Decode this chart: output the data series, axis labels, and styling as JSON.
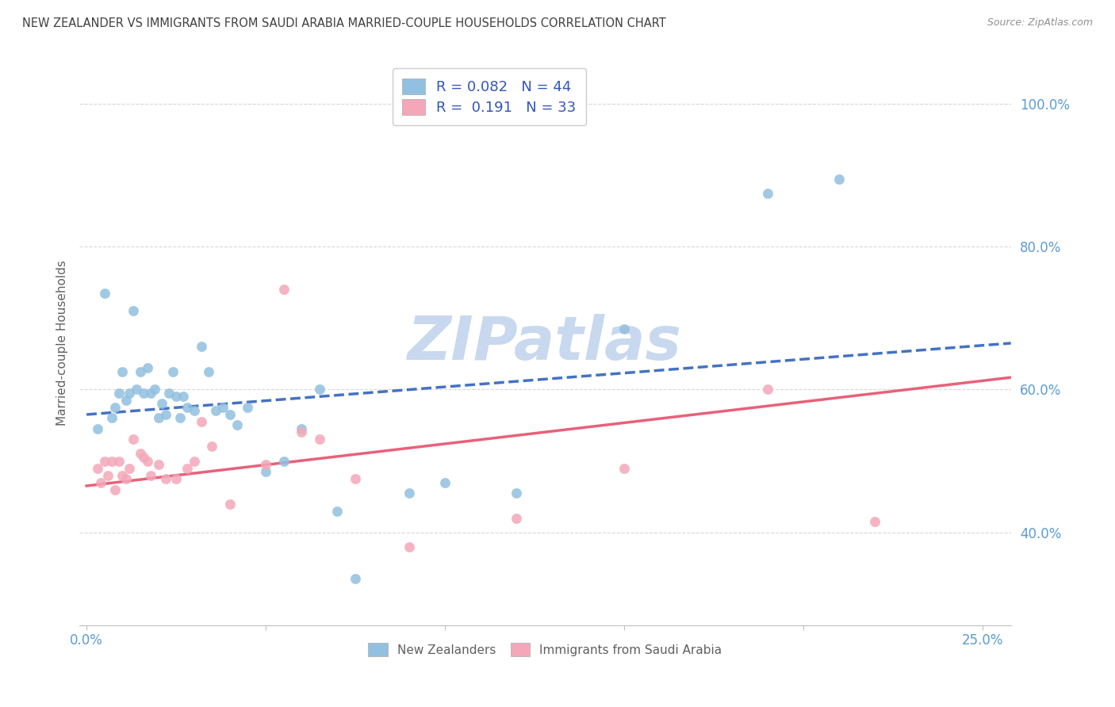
{
  "title": "NEW ZEALANDER VS IMMIGRANTS FROM SAUDI ARABIA MARRIED-COUPLE HOUSEHOLDS CORRELATION CHART",
  "source": "Source: ZipAtlas.com",
  "ylabel": "Married-couple Households",
  "ylim": [
    0.27,
    1.06
  ],
  "xlim": [
    -0.002,
    0.258
  ],
  "yticks": [
    0.4,
    0.6,
    0.8,
    1.0
  ],
  "ytick_labels": [
    "40.0%",
    "60.0%",
    "80.0%",
    "100.0%"
  ],
  "xticks": [
    0.0,
    0.05,
    0.1,
    0.15,
    0.2,
    0.25
  ],
  "legend_r1": "R = 0.082",
  "legend_n1": "N = 44",
  "legend_r2": "R =  0.191",
  "legend_n2": "N = 33",
  "legend_label1": "New Zealanders",
  "legend_label2": "Immigrants from Saudi Arabia",
  "color_blue": "#92c0e0",
  "color_pink": "#f4a7b9",
  "color_blue_line": "#4472c4",
  "color_pink_line": "#e8617a",
  "color_title": "#404040",
  "color_source": "#909090",
  "color_watermark": "#c8d8ee",
  "watermark": "ZIPatlas",
  "blue_scatter_x": [
    0.003,
    0.005,
    0.007,
    0.008,
    0.009,
    0.01,
    0.011,
    0.012,
    0.013,
    0.014,
    0.015,
    0.016,
    0.017,
    0.018,
    0.019,
    0.02,
    0.021,
    0.022,
    0.023,
    0.024,
    0.025,
    0.026,
    0.027,
    0.028,
    0.03,
    0.032,
    0.034,
    0.036,
    0.038,
    0.04,
    0.042,
    0.045,
    0.05,
    0.055,
    0.06,
    0.065,
    0.07,
    0.075,
    0.09,
    0.1,
    0.12,
    0.15,
    0.19,
    0.21
  ],
  "blue_scatter_y": [
    0.545,
    0.735,
    0.56,
    0.575,
    0.595,
    0.625,
    0.585,
    0.595,
    0.71,
    0.6,
    0.625,
    0.595,
    0.63,
    0.595,
    0.6,
    0.56,
    0.58,
    0.565,
    0.595,
    0.625,
    0.59,
    0.56,
    0.59,
    0.575,
    0.57,
    0.66,
    0.625,
    0.57,
    0.575,
    0.565,
    0.55,
    0.575,
    0.485,
    0.5,
    0.545,
    0.6,
    0.43,
    0.335,
    0.455,
    0.47,
    0.455,
    0.685,
    0.875,
    0.895
  ],
  "pink_scatter_x": [
    0.003,
    0.004,
    0.005,
    0.006,
    0.007,
    0.008,
    0.009,
    0.01,
    0.011,
    0.012,
    0.013,
    0.015,
    0.016,
    0.017,
    0.018,
    0.02,
    0.022,
    0.025,
    0.028,
    0.03,
    0.032,
    0.035,
    0.04,
    0.05,
    0.055,
    0.06,
    0.065,
    0.075,
    0.09,
    0.12,
    0.15,
    0.19,
    0.22
  ],
  "pink_scatter_y": [
    0.49,
    0.47,
    0.5,
    0.48,
    0.5,
    0.46,
    0.5,
    0.48,
    0.475,
    0.49,
    0.53,
    0.51,
    0.505,
    0.5,
    0.48,
    0.495,
    0.475,
    0.475,
    0.49,
    0.5,
    0.555,
    0.52,
    0.44,
    0.495,
    0.74,
    0.54,
    0.53,
    0.475,
    0.38,
    0.42,
    0.49,
    0.6,
    0.415
  ],
  "blue_trend_x": [
    0.0,
    0.258
  ],
  "blue_trend_y": [
    0.565,
    0.665
  ],
  "pink_trend_x": [
    0.0,
    0.258
  ],
  "pink_trend_y": [
    0.465,
    0.617
  ],
  "background_color": "#ffffff",
  "grid_color": "#d8d8d8",
  "fig_width": 14.06,
  "fig_height": 8.92,
  "dpi": 100
}
